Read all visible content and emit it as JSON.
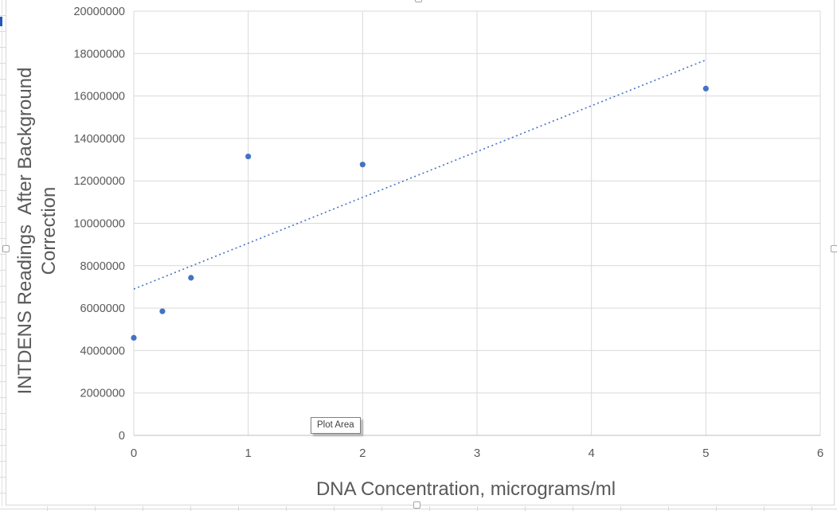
{
  "chart_data": {
    "type": "scatter",
    "title": "",
    "xlabel": "DNA Concentration, micrograms/ml",
    "ylabel": "INTDENS Readings  After Background Correction",
    "ylabel_lines": [
      "INTDENS Readings  After Background",
      "Correction"
    ],
    "x": [
      0,
      0.25,
      0.5,
      1,
      2,
      5
    ],
    "y": [
      4600000,
      5850000,
      7430000,
      13150000,
      12770000,
      16350000
    ],
    "xlim": [
      0,
      6
    ],
    "ylim": [
      0,
      20000000
    ],
    "xticks": [
      0,
      1,
      2,
      3,
      4,
      5,
      6
    ],
    "yticks": [
      0,
      2000000,
      4000000,
      6000000,
      8000000,
      10000000,
      12000000,
      14000000,
      16000000,
      18000000,
      20000000
    ],
    "grid": true,
    "legend": false,
    "marker_color": "#4472C4",
    "trendline": {
      "style": "dotted",
      "color": "#4472C4",
      "x_start": 0,
      "y_start": 6900000,
      "x_end": 5,
      "y_end": 17700000
    }
  },
  "tooltip": {
    "label": "Plot Area"
  },
  "colors": {
    "gridline": "#D9D9D9",
    "axis_line": "#BFBFBF",
    "text": "#595959",
    "chart_border": "#D7D7D7",
    "accent_blue": "#4472C4",
    "selection_mark_blue": "#2458B8"
  }
}
